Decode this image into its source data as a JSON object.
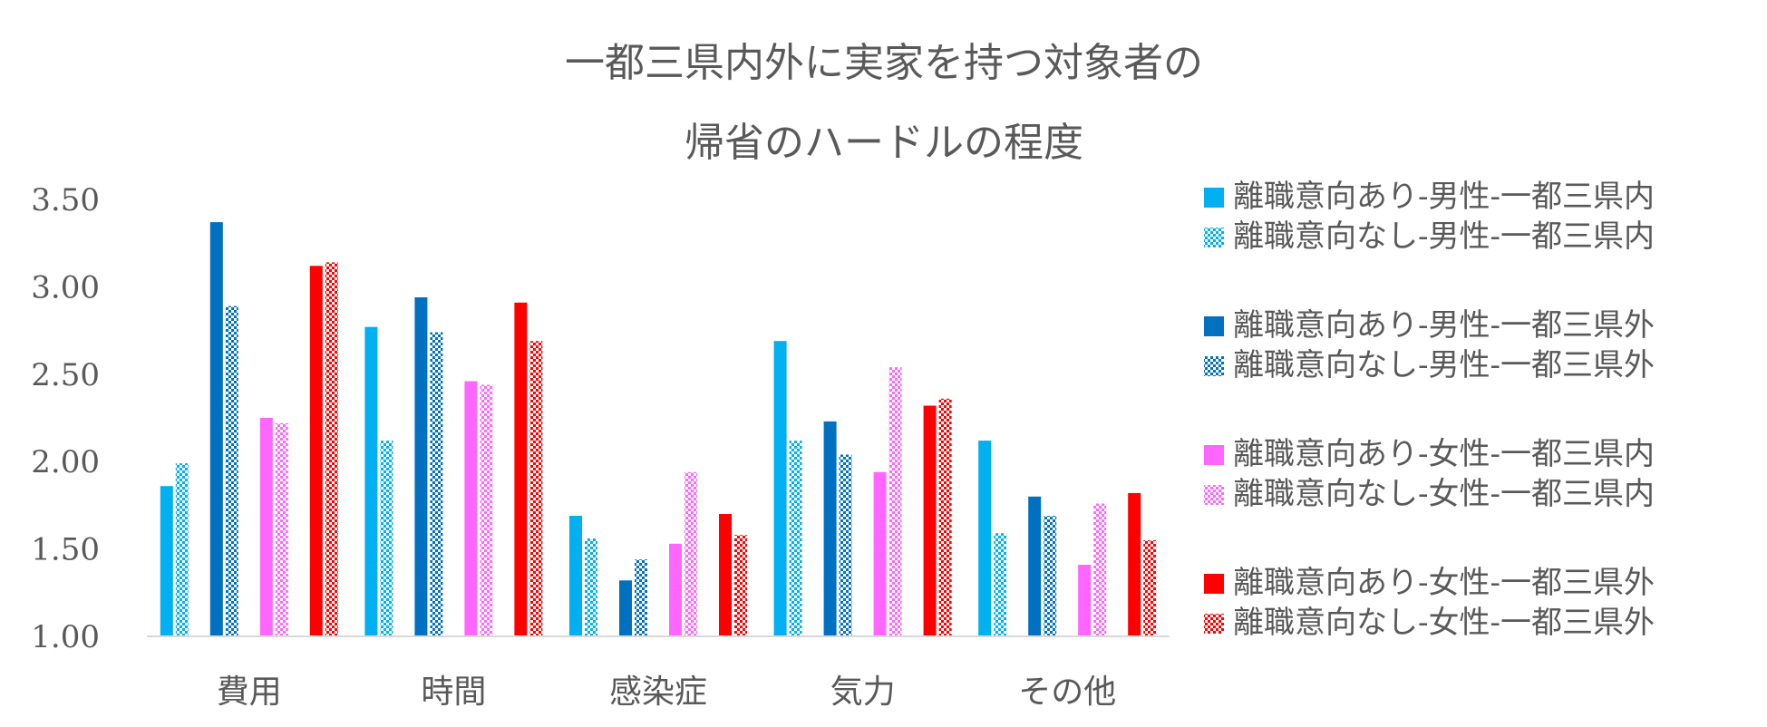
{
  "chart_data": {
    "type": "bar",
    "title": [
      "一都三県内外に実家を持つ対象者の",
      "帰省のハードルの程度"
    ],
    "categories": [
      "費用",
      "時間",
      "感染症",
      "気力",
      "その他"
    ],
    "ylim": [
      1.0,
      3.5
    ],
    "yticks": [
      "1.00",
      "1.50",
      "2.00",
      "2.50",
      "3.00",
      "3.50"
    ],
    "gridlines": false,
    "legend_position": "right",
    "series": [
      {
        "name": "離職意向あり-男性-一都三県内",
        "color": "#00B0F0",
        "pattern": "solid",
        "values": [
          1.86,
          2.77,
          1.69,
          2.69,
          2.12
        ]
      },
      {
        "name": "離職意向なし-男性-一都三県内",
        "color": "#00B0F0",
        "pattern": "checker",
        "values": [
          1.99,
          2.12,
          1.56,
          2.12,
          1.59
        ]
      },
      {
        "name": "離職意向あり-男性-一都三県外",
        "color": "#0070C0",
        "pattern": "solid",
        "values": [
          3.37,
          2.94,
          1.32,
          2.23,
          1.8
        ]
      },
      {
        "name": "離職意向なし-男性-一都三県外",
        "color": "#0070C0",
        "pattern": "checker",
        "values": [
          2.89,
          2.74,
          1.44,
          2.04,
          1.69
        ]
      },
      {
        "name": "離職意向あり-女性-一都三県内",
        "color": "#FF66FF",
        "pattern": "solid",
        "values": [
          2.25,
          2.46,
          1.53,
          1.94,
          1.41
        ]
      },
      {
        "name": "離職意向なし-女性-一都三県内",
        "color": "#FF66FF",
        "pattern": "checker",
        "values": [
          2.22,
          2.44,
          1.94,
          2.54,
          1.76
        ]
      },
      {
        "name": "離職意向あり-女性-一都三県外",
        "color": "#FF0000",
        "pattern": "solid",
        "values": [
          3.12,
          2.91,
          1.7,
          2.32,
          1.82
        ]
      },
      {
        "name": "離職意向なし-女性-一都三県外",
        "color": "#FF0000",
        "pattern": "checker",
        "values": [
          3.14,
          2.69,
          1.58,
          2.36,
          1.55
        ]
      }
    ]
  }
}
